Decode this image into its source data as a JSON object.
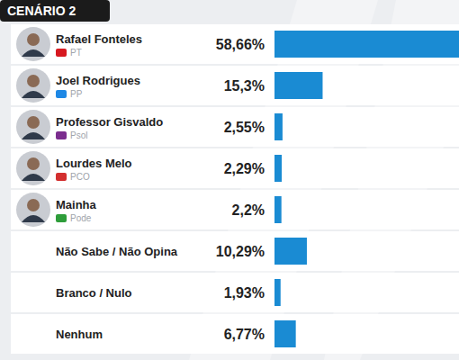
{
  "chart_data": {
    "type": "bar",
    "orientation": "horizontal",
    "title": "CENÁRIO 2",
    "categories": [
      "Rafael Fonteles",
      "Joel Rodrigues",
      "Professor Gisvaldo",
      "Lourdes Melo",
      "Mainha",
      "Não Sabe / Não Opina",
      "Branco / Nulo",
      "Nenhum"
    ],
    "party_labels": [
      "PT",
      "PP",
      "Psol",
      "PCO",
      "Pode",
      null,
      null,
      null
    ],
    "values": [
      58.66,
      15.3,
      2.55,
      2.29,
      2.2,
      10.29,
      1.93,
      6.77
    ],
    "value_labels": [
      "58,66%",
      "15,3%",
      "2,55%",
      "2,29%",
      "2,2%",
      "10,29%",
      "1,93%",
      "6,77%"
    ],
    "color": "#1a8bd3",
    "xlim": [
      0,
      58.66
    ],
    "data_labels": true,
    "tick_labels": "y",
    "grid": false
  }
}
